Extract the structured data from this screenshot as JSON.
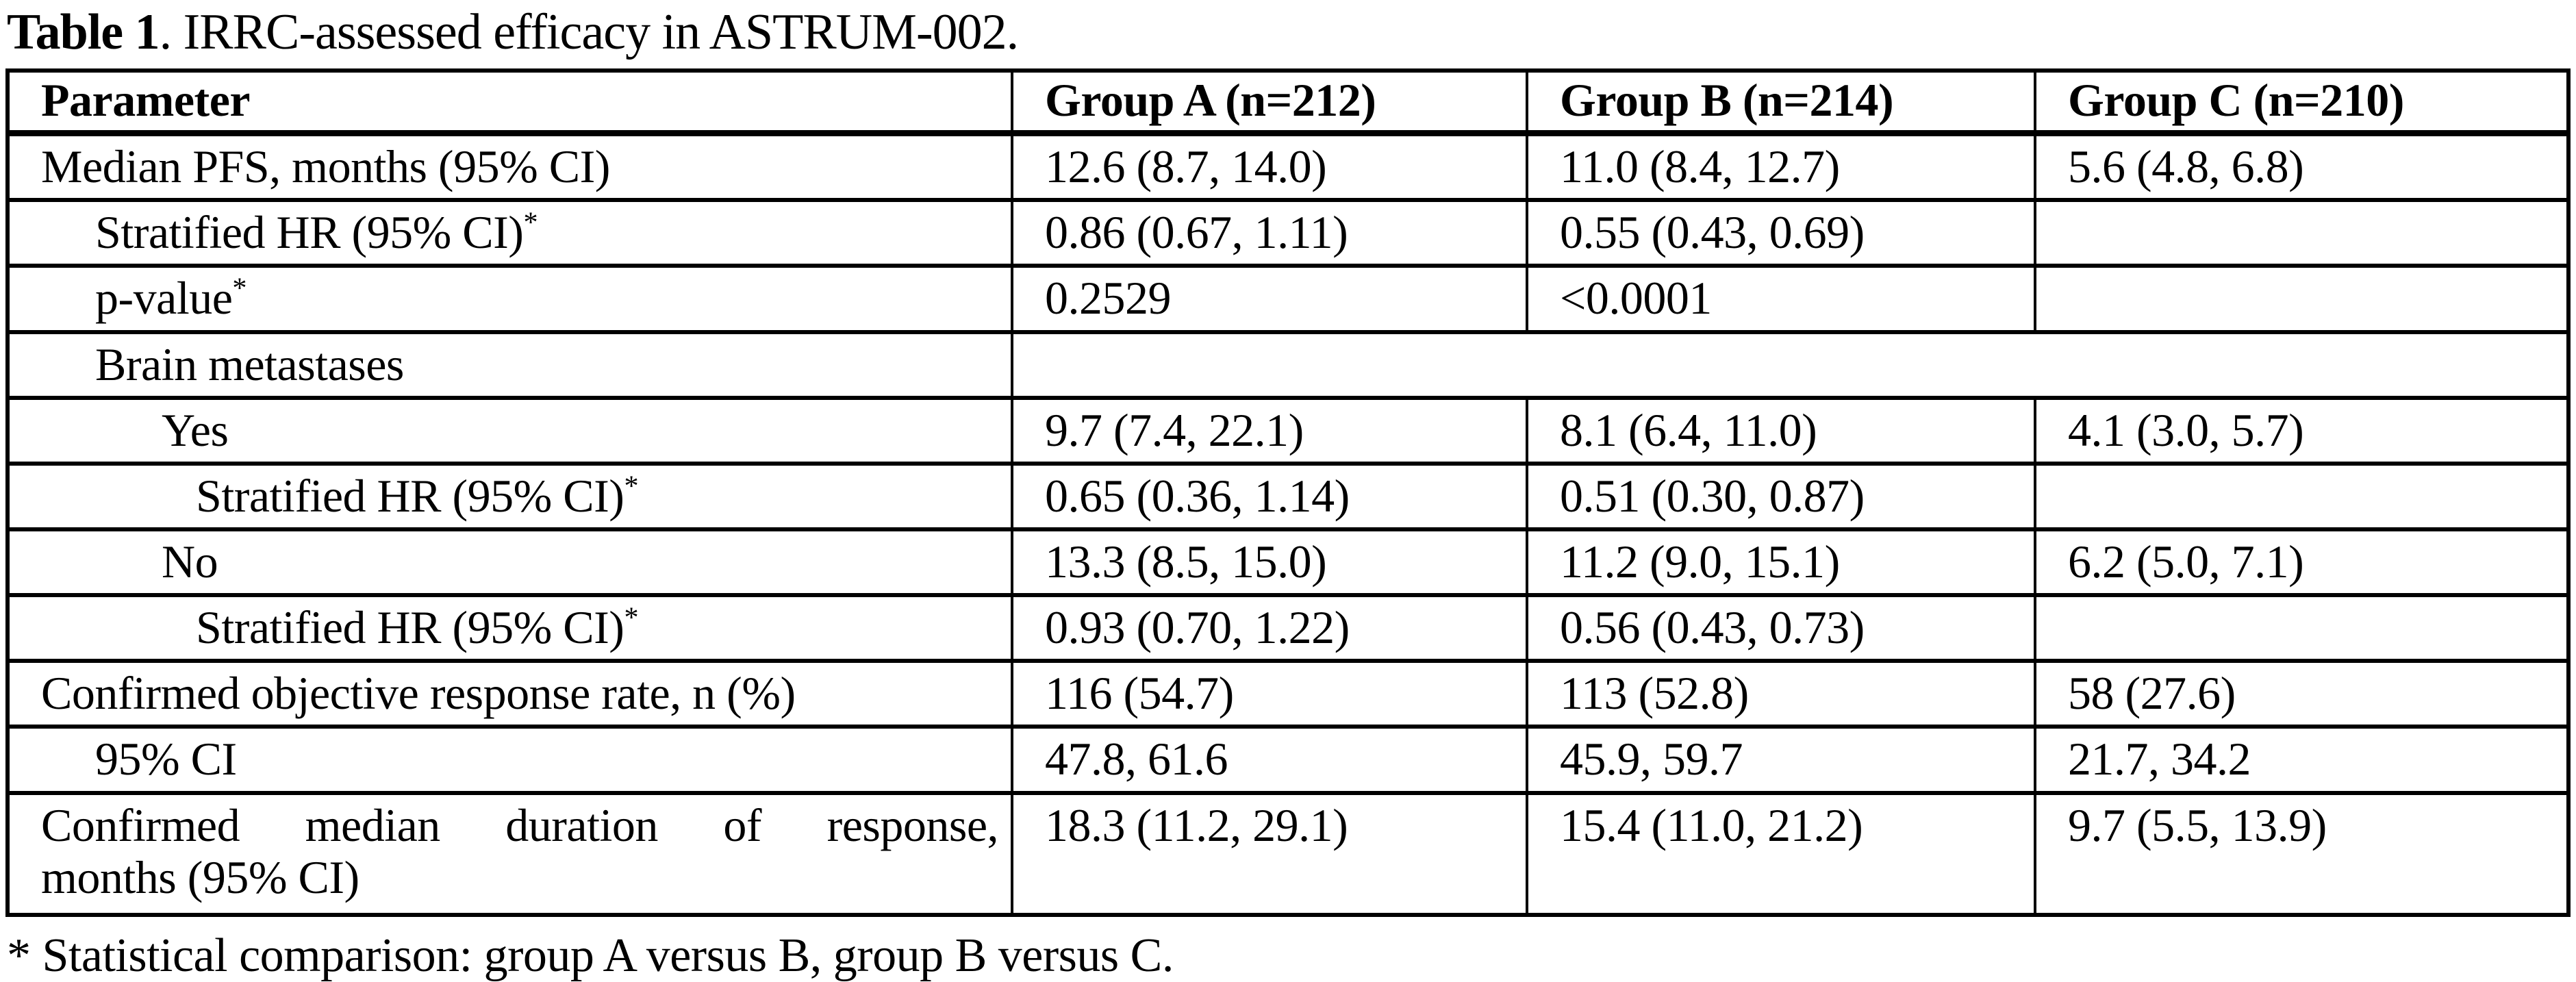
{
  "title": {
    "label_bold": "Table 1",
    "label_rest": ". IRRC-assessed efficacy in ASTRUM-002."
  },
  "table": {
    "columns": [
      "Parameter",
      "Group A (n=212)",
      "Group B (n=214)",
      "Group C (n=210)"
    ],
    "rows": [
      {
        "param": "Median PFS, months (95% CI)",
        "group_a": "12.6 (8.7, 14.0)",
        "group_b": "11.0 (8.4, 12.7)",
        "group_c": "5.6 (4.8, 6.8)"
      },
      {
        "param": "Stratified HR (95% CI)",
        "footnote_marker": "*",
        "group_a": "0.86 (0.67, 1.11)",
        "group_b": "0.55 (0.43, 0.69)",
        "group_c": ""
      },
      {
        "param": "p-value",
        "footnote_marker": "*",
        "group_a": "0.2529",
        "group_b": "<0.0001",
        "group_c": ""
      },
      {
        "param": "Brain metastases",
        "group_abc_merged": ""
      },
      {
        "param": "Yes",
        "group_a": "9.7 (7.4, 22.1)",
        "group_b": "8.1 (6.4, 11.0)",
        "group_c": "4.1 (3.0, 5.7)"
      },
      {
        "param": "Stratified HR (95% CI)",
        "footnote_marker": "*",
        "group_a": "0.65 (0.36, 1.14)",
        "group_b": "0.51 (0.30, 0.87)",
        "group_c": ""
      },
      {
        "param": "No",
        "group_a": "13.3 (8.5, 15.0)",
        "group_b": "11.2 (9.0, 15.1)",
        "group_c": "6.2 (5.0, 7.1)"
      },
      {
        "param": "Stratified HR (95% CI)",
        "footnote_marker": "*",
        "group_a": "0.93 (0.70, 1.22)",
        "group_b": "0.56 (0.43, 0.73)",
        "group_c": ""
      },
      {
        "param": "Confirmed objective response rate, n (%)",
        "group_a": "116 (54.7)",
        "group_b": "113 (52.8)",
        "group_c": "58 (27.6)"
      },
      {
        "param": "95% CI",
        "group_a": "47.8, 61.6",
        "group_b": "45.9, 59.7",
        "group_c": "21.7, 34.2"
      },
      {
        "param_lines": [
          "Confirmed median duration of response,",
          "months (95% CI)"
        ],
        "group_a": "18.3 (11.2, 29.1)",
        "group_b": "15.4 (11.0, 21.2)",
        "group_c": "9.7 (5.5, 13.9)"
      }
    ]
  },
  "footnote": "* Statistical comparison: group A versus B, group B versus C."
}
